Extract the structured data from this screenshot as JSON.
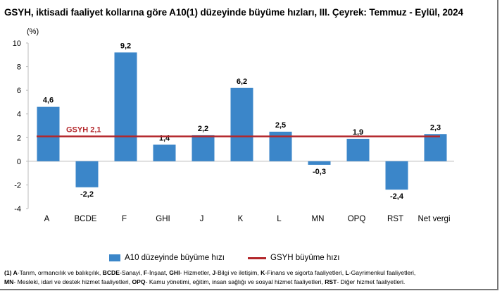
{
  "chart_data": {
    "type": "bar",
    "title": "GSYH, iktisadi faaliyet kollarına göre A10(1) düzeyinde büyüme hızları, III. Çeyrek: Temmuz - Eylül, 2024",
    "ylabel": "(%)",
    "xlabel": "",
    "ylim": [
      -4,
      10
    ],
    "yticks": [
      10,
      8,
      6,
      4,
      2,
      0,
      -2,
      -4
    ],
    "ytick_labels": [
      "10",
      "8",
      "6",
      "4",
      "2",
      "0",
      "-2",
      "-4"
    ],
    "categories": [
      "A",
      "BCDE",
      "F",
      "GHI",
      "J",
      "K",
      "L",
      "MN",
      "OPQ",
      "RST",
      "Net vergi"
    ],
    "series": [
      {
        "name": "A10 düzeyinde büyüme hızı",
        "type": "bar",
        "color": "#3b86c9",
        "values": [
          4.6,
          -2.2,
          9.2,
          1.4,
          2.2,
          6.2,
          2.5,
          -0.3,
          1.9,
          -2.4,
          2.3
        ],
        "labels": [
          "4,6",
          "-2,2",
          "9,2",
          "1,4",
          "2,2",
          "6,2",
          "2,5",
          "-0,3",
          "1,9",
          "-2,4",
          "2,3"
        ]
      },
      {
        "name": "GSYH büyüme hızı",
        "type": "line",
        "color": "#b3262a",
        "value": 2.1,
        "annotation": "GSYH 2,1"
      }
    ],
    "grid": false,
    "legend": "bottom"
  },
  "footnote": {
    "prefix": "(1)",
    "items": [
      {
        "code": "A",
        "text": "-Tarım, ormancılık ve balıkçılık, "
      },
      {
        "code": "BCDE",
        "text": "-Sanayi, "
      },
      {
        "code": "F",
        "text": "-İnşaat, "
      },
      {
        "code": "GHI",
        "text": "- Hizmetler, "
      },
      {
        "code": "J",
        "text": "-Bilgi ve iletişim, "
      },
      {
        "code": "K",
        "text": "-Finans ve sigorta faaliyetleri, "
      },
      {
        "code": "L",
        "text": "-Gayrimenkul faaliyetleri, "
      },
      {
        "code": "MN",
        "text": "- Mesleki, idari ve destek hizmet faaliyetleri, "
      },
      {
        "code": "OPQ",
        "text": "- Kamu yönetimi, eğitim, insan sağlığı ve sosyal hizmet faaliyetleri, "
      },
      {
        "code": "RST",
        "text": "- Diğer hizmet faaliyetleri."
      }
    ]
  }
}
